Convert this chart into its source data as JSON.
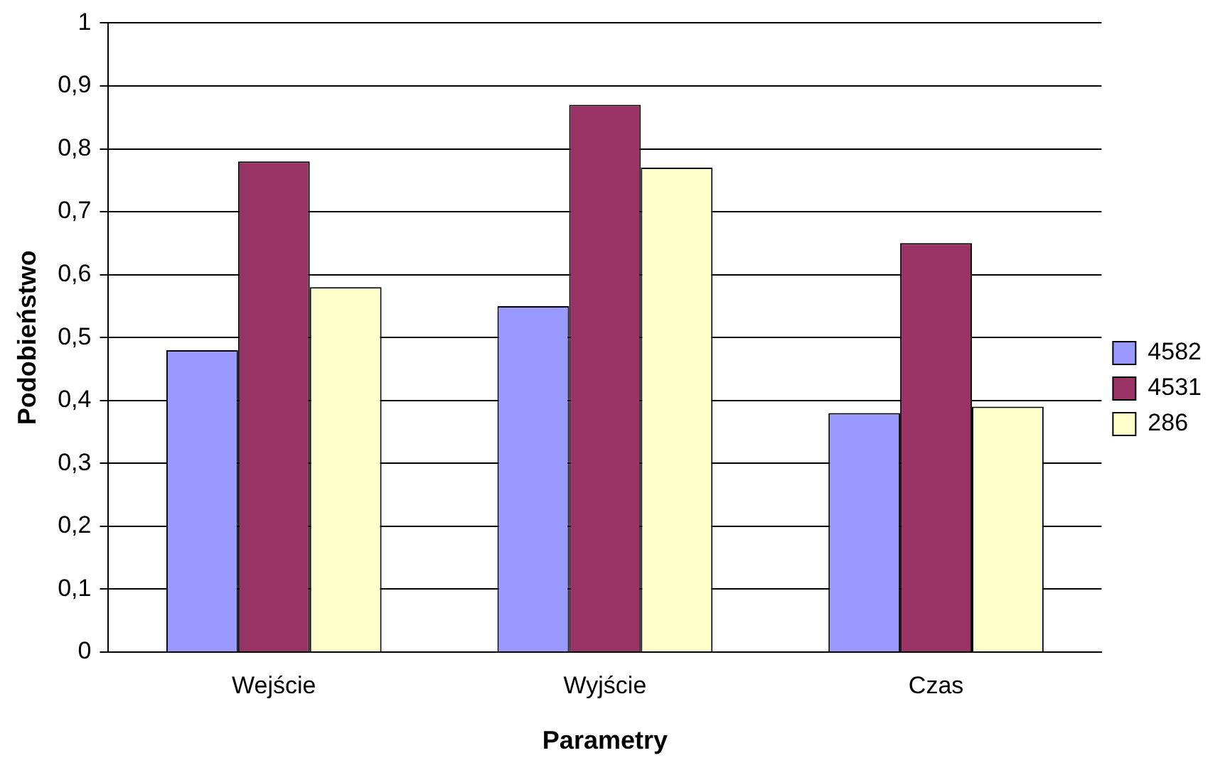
{
  "chart_data": {
    "type": "bar",
    "xlabel": "Parametry",
    "ylabel": "Podobieństwo",
    "categories": [
      "Wejście",
      "Wyjście",
      "Czas"
    ],
    "series": [
      {
        "name": "4582",
        "color": "#9999ff",
        "values": [
          0.48,
          0.55,
          0.38
        ]
      },
      {
        "name": "4531",
        "color": "#993366",
        "values": [
          0.78,
          0.87,
          0.65
        ]
      },
      {
        "name": "286",
        "color": "#ffffcc",
        "values": [
          0.58,
          0.77,
          0.39
        ]
      }
    ],
    "ylim": [
      0,
      1
    ],
    "yticks": [
      {
        "value": 0,
        "label": "0"
      },
      {
        "value": 0.1,
        "label": "0,1"
      },
      {
        "value": 0.2,
        "label": "0,2"
      },
      {
        "value": 0.3,
        "label": "0,3"
      },
      {
        "value": 0.4,
        "label": "0,4"
      },
      {
        "value": 0.5,
        "label": "0,5"
      },
      {
        "value": 0.6,
        "label": "0,6"
      },
      {
        "value": 0.7,
        "label": "0,7"
      },
      {
        "value": 0.8,
        "label": "0,8"
      },
      {
        "value": 0.9,
        "label": "0,9"
      },
      {
        "value": 1,
        "label": "1"
      }
    ],
    "grid": "y",
    "legend": "right"
  }
}
